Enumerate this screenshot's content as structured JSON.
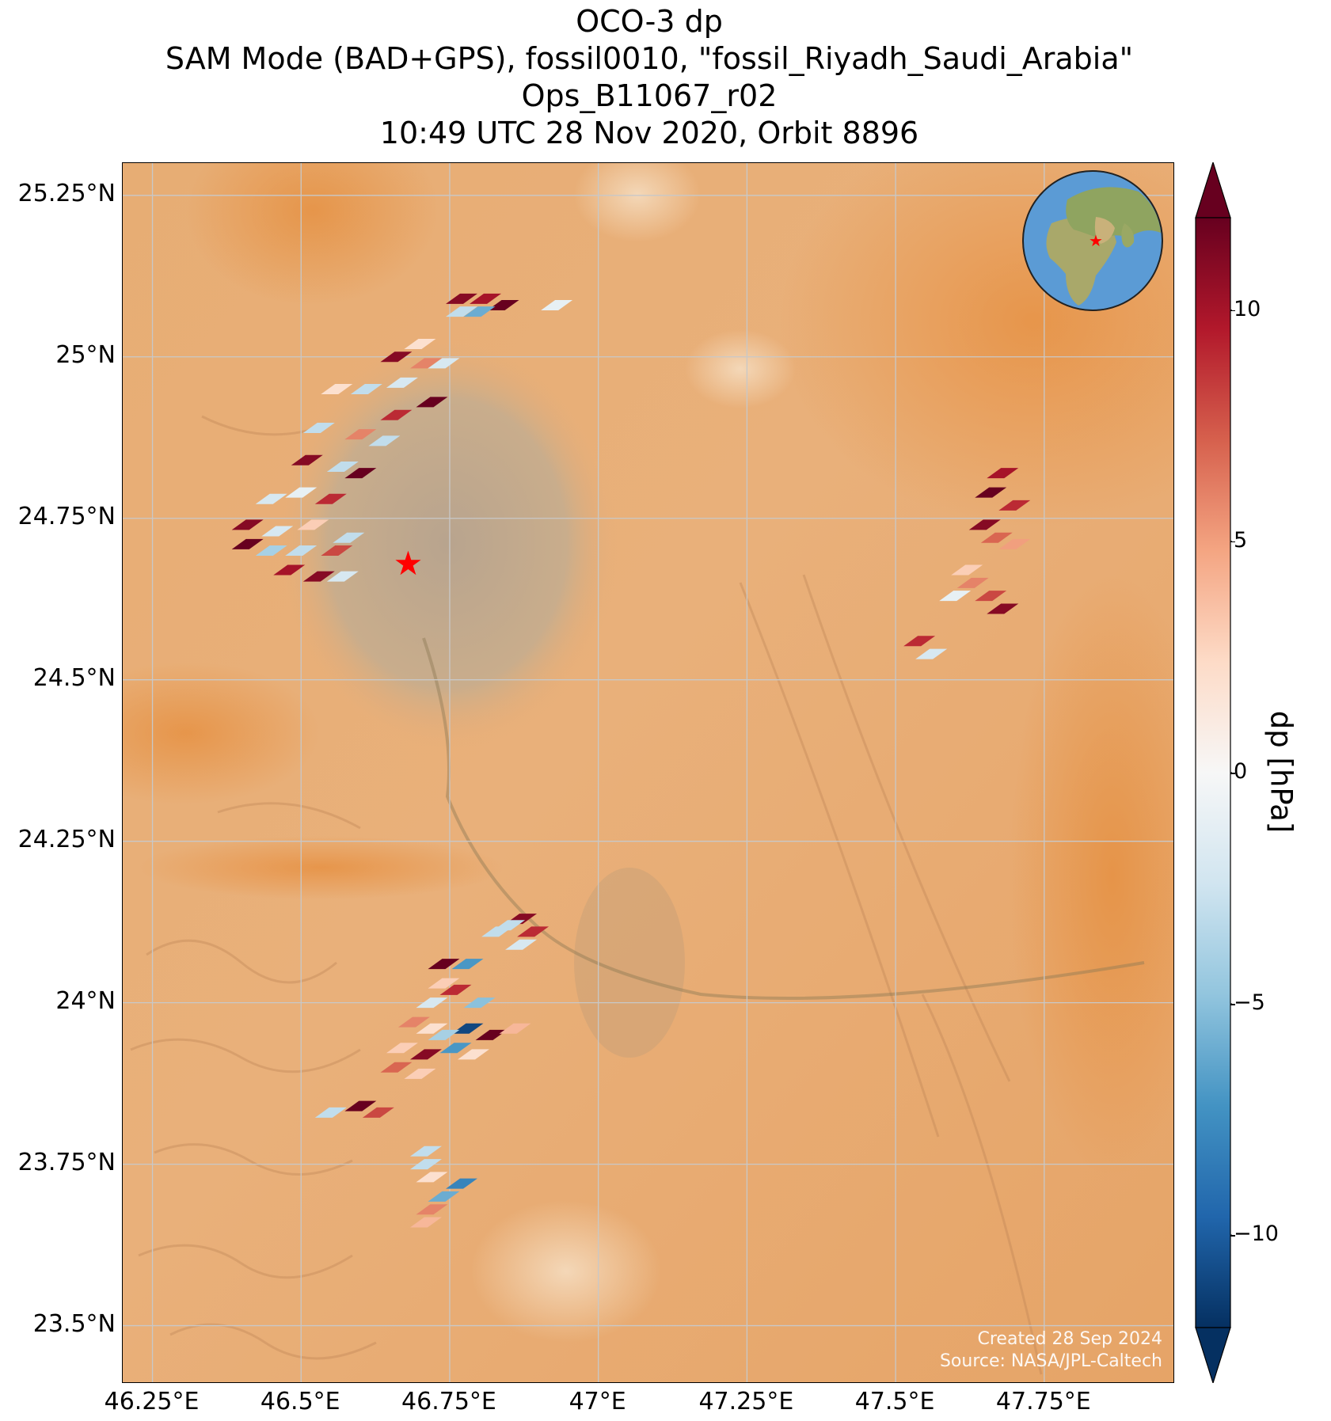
{
  "title": {
    "line1": "OCO-3 dp",
    "line2": "SAM Mode (BAD+GPS), fossil0010, \"fossil_Riyadh_Saudi_Arabia\"",
    "line3": "Ops_B11067_r02",
    "line4": "10:49 UTC 28 Nov 2020, Orbit 8896"
  },
  "map": {
    "lon_range": [
      46.2,
      47.97
    ],
    "lat_range": [
      23.41,
      25.3
    ],
    "lat_ticks": [
      {
        "value": 25.25,
        "label": "25.25°N"
      },
      {
        "value": 25.0,
        "label": "25°N"
      },
      {
        "value": 24.75,
        "label": "24.75°N"
      },
      {
        "value": 24.5,
        "label": "24.5°N"
      },
      {
        "value": 24.25,
        "label": "24.25°N"
      },
      {
        "value": 24.0,
        "label": "24°N"
      },
      {
        "value": 23.75,
        "label": "23.75°N"
      },
      {
        "value": 23.5,
        "label": "23.5°N"
      }
    ],
    "lon_ticks": [
      {
        "value": 46.25,
        "label": "46.25°E"
      },
      {
        "value": 46.5,
        "label": "46.5°E"
      },
      {
        "value": 46.75,
        "label": "46.75°E"
      },
      {
        "value": 47.0,
        "label": "47°E"
      },
      {
        "value": 47.25,
        "label": "47.25°E"
      },
      {
        "value": 47.5,
        "label": "47.5°E"
      },
      {
        "value": 47.75,
        "label": "47.75°E"
      }
    ],
    "target": {
      "lon": 46.68,
      "lat": 24.68,
      "color": "#ff0000"
    },
    "background": {
      "sand": "#e8a868",
      "city": "#b9a38b"
    },
    "grid": true,
    "credit_line1": "Created 28 Sep 2024",
    "credit_line2": "Source: NASA/JPL-Caltech"
  },
  "colorbar": {
    "label": "dp [hPa]",
    "min": -12,
    "max": 12,
    "ticks": [
      {
        "value": 10,
        "label": "10"
      },
      {
        "value": 5,
        "label": "5"
      },
      {
        "value": 0,
        "label": "0"
      },
      {
        "value": -5,
        "label": "−5"
      },
      {
        "value": -10,
        "label": "−10"
      }
    ],
    "colormap": "RdBu_r",
    "stops": [
      "#053061",
      "#2166ac",
      "#4393c3",
      "#92c5de",
      "#d1e5f0",
      "#f7f7f7",
      "#fddbc7",
      "#f4a582",
      "#d6604d",
      "#b2182b",
      "#67001f"
    ]
  },
  "inset": {
    "name": "globe",
    "ocean": "#5b9bd5",
    "land": "#9aa86a",
    "marker": "#ff0000"
  },
  "chart_data": {
    "type": "scatter",
    "xlabel": "",
    "ylabel": "",
    "xlim": [
      46.2,
      47.97
    ],
    "ylim": [
      23.41,
      25.3
    ],
    "clusters": [
      {
        "region": "north-west swath",
        "points": [
          [
            46.77,
            25.09,
            11
          ],
          [
            46.81,
            25.09,
            10
          ],
          [
            46.84,
            25.08,
            12
          ],
          [
            46.77,
            25.07,
            -3
          ],
          [
            46.8,
            25.07,
            -6
          ],
          [
            46.93,
            25.08,
            -1
          ],
          [
            46.7,
            25.02,
            2
          ],
          [
            46.66,
            25.0,
            11
          ],
          [
            46.71,
            24.99,
            6
          ],
          [
            46.74,
            24.99,
            -2
          ],
          [
            46.56,
            24.95,
            2
          ],
          [
            46.61,
            24.95,
            -3
          ],
          [
            46.67,
            24.96,
            -2
          ],
          [
            46.53,
            24.89,
            -3
          ],
          [
            46.6,
            24.88,
            6
          ],
          [
            46.66,
            24.91,
            9
          ],
          [
            46.72,
            24.93,
            12
          ],
          [
            46.64,
            24.87,
            -3
          ],
          [
            46.51,
            24.84,
            11
          ],
          [
            46.57,
            24.83,
            -3
          ],
          [
            46.6,
            24.82,
            12
          ],
          [
            46.45,
            24.78,
            -2
          ],
          [
            46.5,
            24.79,
            -1
          ],
          [
            46.55,
            24.78,
            9
          ],
          [
            46.41,
            24.74,
            11
          ],
          [
            46.46,
            24.73,
            -2
          ],
          [
            46.52,
            24.74,
            3
          ],
          [
            46.58,
            24.72,
            -3
          ],
          [
            46.41,
            24.71,
            12
          ],
          [
            46.45,
            24.7,
            -4
          ],
          [
            46.5,
            24.7,
            -3
          ],
          [
            46.56,
            24.7,
            8
          ],
          [
            46.48,
            24.67,
            10
          ],
          [
            46.53,
            24.66,
            11
          ],
          [
            46.57,
            24.66,
            -2
          ]
        ]
      },
      {
        "region": "east swath",
        "points": [
          [
            47.66,
            24.79,
            12
          ],
          [
            47.68,
            24.82,
            10
          ],
          [
            47.7,
            24.77,
            9
          ],
          [
            47.65,
            24.74,
            11
          ],
          [
            47.67,
            24.72,
            7
          ],
          [
            47.7,
            24.71,
            5
          ],
          [
            47.62,
            24.67,
            3
          ],
          [
            47.63,
            24.65,
            6
          ],
          [
            47.66,
            24.63,
            8
          ],
          [
            47.6,
            24.63,
            -1
          ],
          [
            47.68,
            24.61,
            11
          ],
          [
            47.54,
            24.56,
            9
          ],
          [
            47.56,
            24.54,
            -2
          ]
        ]
      },
      {
        "region": "south swath",
        "points": [
          [
            46.87,
            24.13,
            11
          ],
          [
            46.89,
            24.11,
            9
          ],
          [
            46.85,
            24.12,
            -3
          ],
          [
            46.83,
            24.11,
            -3
          ],
          [
            46.87,
            24.09,
            -2
          ],
          [
            46.74,
            24.06,
            12
          ],
          [
            46.78,
            24.06,
            -7
          ],
          [
            46.74,
            24.03,
            3
          ],
          [
            46.76,
            24.02,
            9
          ],
          [
            46.72,
            24.0,
            -2
          ],
          [
            46.8,
            24.0,
            -5
          ],
          [
            46.69,
            23.97,
            6
          ],
          [
            46.72,
            23.96,
            2
          ],
          [
            46.78,
            23.96,
            -11
          ],
          [
            46.82,
            23.95,
            12
          ],
          [
            46.86,
            23.96,
            4
          ],
          [
            46.74,
            23.95,
            -4
          ],
          [
            46.67,
            23.93,
            3
          ],
          [
            46.71,
            23.92,
            11
          ],
          [
            46.76,
            23.93,
            -7
          ],
          [
            46.79,
            23.92,
            2
          ],
          [
            46.66,
            23.9,
            7
          ],
          [
            46.7,
            23.89,
            3
          ],
          [
            46.6,
            23.84,
            12
          ],
          [
            46.63,
            23.83,
            8
          ],
          [
            46.55,
            23.83,
            -3
          ],
          [
            46.71,
            23.77,
            -3
          ],
          [
            46.71,
            23.75,
            -3
          ],
          [
            46.72,
            23.73,
            2
          ],
          [
            46.77,
            23.72,
            -8
          ],
          [
            46.74,
            23.7,
            -6
          ],
          [
            46.72,
            23.68,
            6
          ],
          [
            46.71,
            23.66,
            4
          ]
        ]
      }
    ]
  }
}
